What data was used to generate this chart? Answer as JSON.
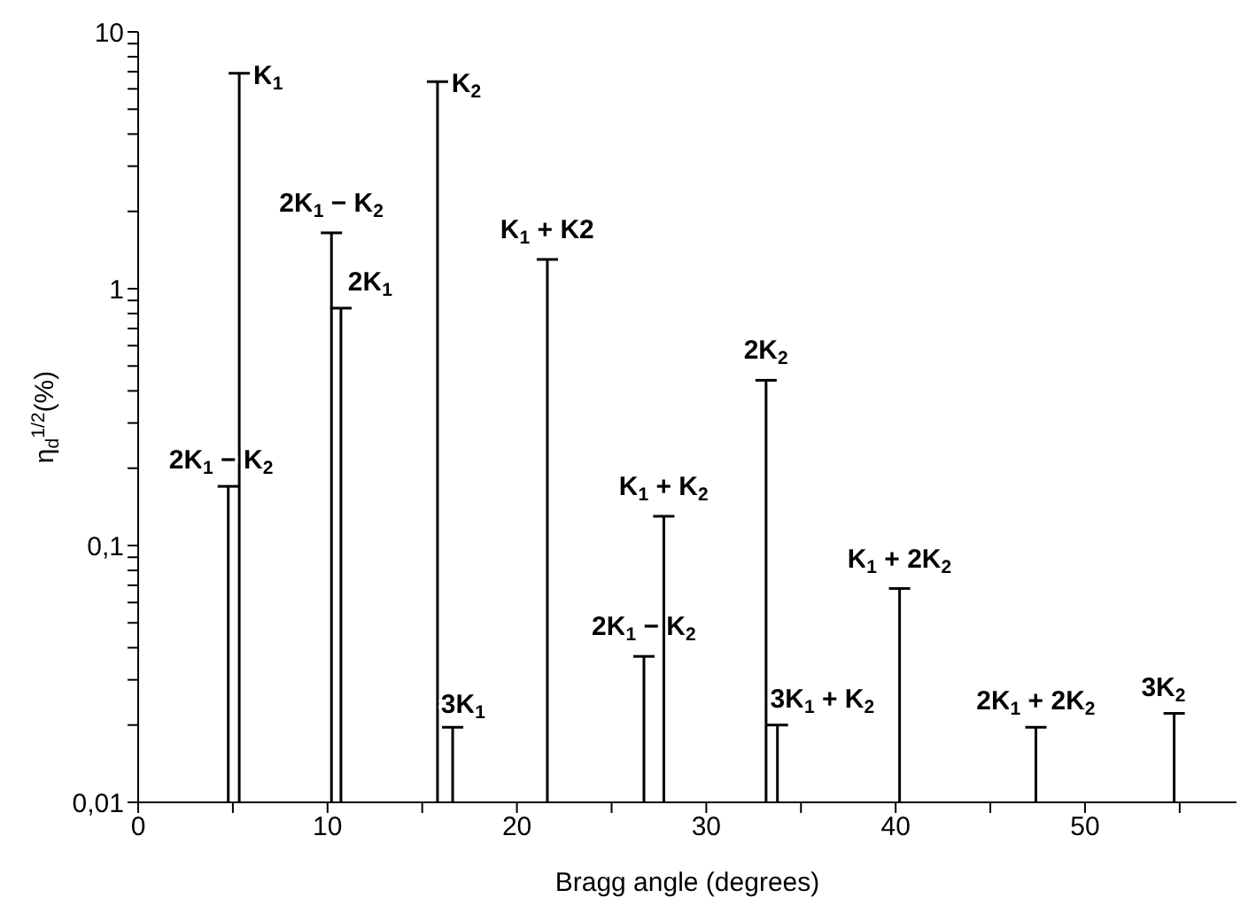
{
  "chart_data": {
    "type": "bar",
    "xlabel": "Bragg angle (degrees)",
    "ylabel": "η$_{d}$$^{1/2}$(%)",
    "log": "y",
    "color": "#000000",
    "x": [
      4.75,
      5.33,
      10.2,
      10.7,
      15.8,
      16.6,
      21.6,
      26.7,
      27.75,
      33.15,
      33.75,
      40.2,
      47.4,
      54.7
    ],
    "values": [
      0.17,
      6.9,
      1.65,
      0.84,
      6.4,
      0.0196,
      1.3,
      0.037,
      0.13,
      0.44,
      0.02,
      0.068,
      0.0196,
      0.0222
    ],
    "xlim": [
      0,
      58
    ],
    "xticks": [
      0,
      {
        "value": 5,
        "label": null
      },
      10,
      {
        "value": 15,
        "label": null
      },
      20,
      {
        "value": 25,
        "label": null
      },
      30,
      {
        "value": 35,
        "label": null
      },
      40,
      {
        "value": 45,
        "label": null
      },
      50,
      {
        "value": 55,
        "label": null
      }
    ],
    "ylim": [
      0.01,
      10
    ],
    "yticks": [
      {
        "value": 0.01,
        "label": "0,01"
      },
      {
        "value": 0.02,
        "label": null
      },
      {
        "value": 0.03,
        "label": null
      },
      {
        "value": 0.04,
        "label": null
      },
      {
        "value": 0.05,
        "label": null
      },
      {
        "value": 0.06,
        "label": null
      },
      {
        "value": 0.07,
        "label": null
      },
      {
        "value": 0.08,
        "label": null
      },
      {
        "value": 0.09,
        "label": null
      },
      {
        "value": 0.1,
        "label": "0,1"
      },
      {
        "value": 0.2,
        "label": null
      },
      {
        "value": 0.3,
        "label": null
      },
      {
        "value": 0.4,
        "label": null
      },
      {
        "value": 0.5,
        "label": null
      },
      {
        "value": 0.6,
        "label": null
      },
      {
        "value": 0.7,
        "label": null
      },
      {
        "value": 0.8,
        "label": null
      },
      {
        "value": 0.9,
        "label": null
      },
      1,
      {
        "value": 2,
        "label": null
      },
      {
        "value": 3,
        "label": null
      },
      {
        "value": 4,
        "label": null
      },
      {
        "value": 5,
        "label": null
      },
      {
        "value": 6,
        "label": null
      },
      {
        "value": 7,
        "label": null
      },
      {
        "value": 8,
        "label": null
      },
      {
        "value": 9,
        "label": null
      },
      10
    ],
    "grid": false,
    "annotations": [
      {
        "text": "2K$_{1}$ − K$_{2}$",
        "x": 4.75,
        "y": 0.17
      },
      {
        "text": "K$_{1}$",
        "x": 5.33,
        "y": 6.9
      },
      {
        "text": "2K$_{1}$ − K$_{2}$",
        "x": 10.2,
        "y": 1.65
      },
      {
        "text": "2K$_{1}$",
        "x": 10.7,
        "y": 0.84
      },
      {
        "text": "K$_{2}$",
        "x": 15.8,
        "y": 6.4
      },
      {
        "text": "3K$_{1}$",
        "x": 16.6,
        "y": 0.0196
      },
      {
        "text": "K$_{1}$ + K2",
        "x": 21.6,
        "y": 1.3
      },
      {
        "text": "2K$_{1}$ − K$_{2}$",
        "x": 26.7,
        "y": 0.037
      },
      {
        "text": "K$_{1}$ + K$_{2}$",
        "x": 27.75,
        "y": 0.13
      },
      {
        "text": "2K$_{2}$",
        "x": 33.15,
        "y": 0.44
      },
      {
        "text": "3K$_{1}$ + K$_{2}$",
        "x": 33.75,
        "y": 0.02
      },
      {
        "text": "K$_{1}$ + 2K$_{2}$",
        "x": 40.2,
        "y": 0.068
      },
      {
        "text": "2K$_{1}$ + 2K$_{2}$",
        "x": 47.4,
        "y": 0.0196
      },
      {
        "text": "3K$_{2}$",
        "x": 54.7,
        "y": 0.0222
      }
    ]
  }
}
